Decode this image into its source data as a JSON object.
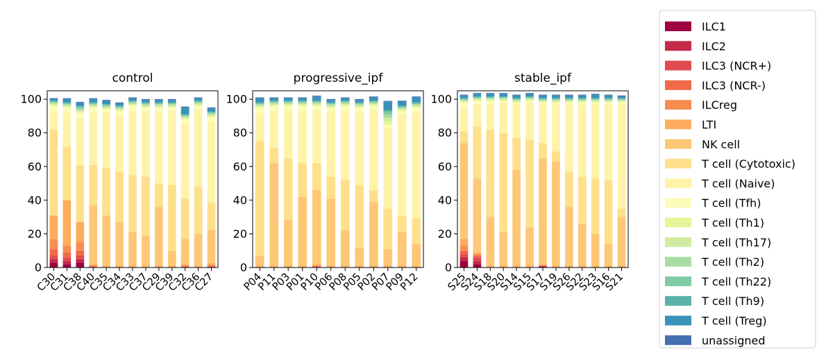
{
  "legend_entries": [
    {
      "name": "ILC1",
      "color": "#9e0142"
    },
    {
      "name": "ILC2",
      "color": "#c42a4a"
    },
    {
      "name": "ILC3 (NCR+)",
      "color": "#e04b4f"
    },
    {
      "name": "ILC3 (NCR-)",
      "color": "#f26a4a"
    },
    {
      "name": "ILCreg",
      "color": "#f88d52"
    },
    {
      "name": "LTI",
      "color": "#fdad5d"
    },
    {
      "name": "NK cell",
      "color": "#fec776"
    },
    {
      "name": "T cell (Cytotoxic)",
      "color": "#fee08b"
    },
    {
      "name": "T cell (Naive)",
      "color": "#fff3a9"
    },
    {
      "name": "T cell (Tfh)",
      "color": "#fbfdb8"
    },
    {
      "name": "T cell (Th1)",
      "color": "#e6f598"
    },
    {
      "name": "T cell (Th17)",
      "color": "#cfeca0"
    },
    {
      "name": "T cell (Th2)",
      "color": "#a9dca4"
    },
    {
      "name": "T cell (Th22)",
      "color": "#80cba4"
    },
    {
      "name": "T cell (Th9)",
      "color": "#5cb1aa"
    },
    {
      "name": "T cell (Treg)",
      "color": "#3a92b8"
    },
    {
      "name": "unassigned",
      "color": "#4470b1"
    }
  ],
  "chart_data": [
    {
      "type": "bar",
      "stacked": true,
      "title": "control",
      "ylim": [
        0,
        105
      ],
      "yticks": [
        0,
        20,
        40,
        60,
        80,
        100
      ],
      "categories": [
        "C30",
        "C31",
        "C38",
        "C40",
        "C35",
        "C34",
        "C33",
        "C37",
        "C29",
        "C39",
        "C32",
        "C36",
        "C27"
      ],
      "series": [
        {
          "name": "ILC1",
          "values": [
            3,
            2,
            3,
            0,
            0,
            0,
            0,
            0,
            0,
            0,
            0,
            0,
            0
          ]
        },
        {
          "name": "ILC2",
          "values": [
            2,
            2,
            2,
            0,
            0,
            0,
            0,
            0,
            0,
            0,
            0,
            0,
            0
          ]
        },
        {
          "name": "ILC3 (NCR+)",
          "values": [
            2,
            2,
            2,
            0.5,
            0,
            0,
            0,
            0,
            0,
            0,
            0.5,
            0,
            0.5
          ]
        },
        {
          "name": "ILC3 (NCR-)",
          "values": [
            4,
            3,
            3,
            0.5,
            0,
            0,
            0,
            0,
            0,
            0,
            0.5,
            0,
            0.5
          ]
        },
        {
          "name": "ILCreg",
          "values": [
            6,
            4,
            5,
            0,
            0,
            0,
            0,
            0,
            0,
            0,
            0,
            0,
            0.5
          ]
        },
        {
          "name": "LTI",
          "values": [
            14,
            27,
            12,
            1,
            1,
            1,
            1,
            1,
            1,
            1,
            1,
            1,
            1
          ]
        },
        {
          "name": "NK cell",
          "values": [
            0,
            0,
            0,
            35,
            30,
            26,
            20,
            18,
            35,
            9,
            15,
            19,
            20
          ]
        },
        {
          "name": "T cell (Cytotoxic)",
          "values": [
            51,
            32,
            34,
            24,
            28,
            30,
            34,
            35,
            14,
            39,
            24,
            28,
            16
          ]
        },
        {
          "name": "T cell (Naive)",
          "values": [
            11,
            20,
            28,
            31,
            33,
            33,
            38,
            39,
            42,
            44,
            44,
            46,
            48
          ]
        },
        {
          "name": "T cell (Tfh)",
          "values": [
            3,
            3,
            3,
            3,
            2,
            3,
            3,
            2,
            3,
            2,
            3,
            2,
            3
          ]
        },
        {
          "name": "T cell (Th1)",
          "values": [
            0.7,
            0.7,
            0.7,
            0.7,
            0.7,
            0.7,
            0.7,
            0.7,
            0.7,
            0.7,
            0.7,
            0.7,
            0.7
          ]
        },
        {
          "name": "T cell (Th17)",
          "values": [
            0.7,
            0.7,
            0.7,
            0.7,
            0.7,
            0.7,
            0.7,
            0.7,
            0.7,
            0.7,
            0.7,
            0.7,
            0.7
          ]
        },
        {
          "name": "T cell (Th2)",
          "values": [
            0.7,
            0.7,
            1,
            0.7,
            0.7,
            0.7,
            0.7,
            0.7,
            0.7,
            0.7,
            0.7,
            0.7,
            0.7
          ]
        },
        {
          "name": "T cell (Th22)",
          "values": [
            0.5,
            0.5,
            1,
            0.5,
            0.5,
            0.5,
            0.5,
            0.5,
            0.5,
            0.5,
            0.5,
            0.5,
            0.5
          ]
        },
        {
          "name": "T cell (Th9)",
          "values": [
            0.5,
            0.5,
            0.5,
            0.5,
            0.5,
            0.5,
            0.5,
            0.5,
            0.5,
            0.5,
            0.5,
            0.5,
            0.5
          ]
        },
        {
          "name": "T cell (Treg)",
          "values": [
            1,
            2,
            2,
            2,
            2,
            1.5,
            1.5,
            1.5,
            1.5,
            1.5,
            4,
            1.5,
            2
          ]
        },
        {
          "name": "unassigned",
          "values": [
            0.5,
            0.5,
            0.5,
            0.5,
            0.5,
            0.5,
            0.5,
            0.5,
            0.5,
            0.5,
            0.5,
            0.5,
            0.5
          ]
        }
      ]
    },
    {
      "type": "bar",
      "stacked": true,
      "title": "progressive_ipf",
      "ylim": [
        0,
        105
      ],
      "yticks": [
        0,
        20,
        40,
        60,
        80,
        100
      ],
      "categories": [
        "P04",
        "P11",
        "P03",
        "P01",
        "P10",
        "P06",
        "P08",
        "P05",
        "P02",
        "P07",
        "P09",
        "P12"
      ],
      "series": [
        {
          "name": "ILC1",
          "values": [
            0,
            0,
            0,
            0,
            0,
            0,
            0,
            0,
            0,
            0,
            0,
            0
          ]
        },
        {
          "name": "ILC2",
          "values": [
            0,
            0,
            0,
            0,
            0,
            0,
            0,
            0,
            0,
            0,
            0,
            0
          ]
        },
        {
          "name": "ILC3 (NCR+)",
          "values": [
            0,
            0,
            0,
            0,
            0.5,
            0,
            0,
            0,
            0,
            0,
            0,
            0
          ]
        },
        {
          "name": "ILC3 (NCR-)",
          "values": [
            0,
            0,
            0,
            0,
            0.5,
            0,
            0,
            0,
            0,
            0,
            0,
            0
          ]
        },
        {
          "name": "ILCreg",
          "values": [
            0,
            0,
            0,
            0,
            0,
            0,
            0,
            0,
            0,
            0,
            0,
            0
          ]
        },
        {
          "name": "LTI",
          "values": [
            1,
            1,
            1,
            1,
            1,
            1,
            1,
            1,
            1,
            1,
            1,
            1
          ]
        },
        {
          "name": "NK cell",
          "values": [
            6,
            61,
            27,
            41,
            44,
            40,
            21,
            11,
            38,
            10,
            20,
            13
          ]
        },
        {
          "name": "T cell (Cytotoxic)",
          "values": [
            68,
            9,
            37,
            20,
            16,
            13,
            30,
            37,
            7,
            24,
            10,
            15
          ]
        },
        {
          "name": "T cell (Naive)",
          "values": [
            17,
            22,
            29,
            31,
            32,
            39,
            41,
            43,
            48,
            48,
            60,
            63
          ]
        },
        {
          "name": "T cell (Tfh)",
          "values": [
            3,
            3,
            2,
            3,
            2,
            2,
            3,
            3,
            2,
            2,
            2,
            3
          ]
        },
        {
          "name": "T cell (Th1)",
          "values": [
            0.7,
            0.7,
            0.7,
            0.7,
            0.7,
            0.7,
            0.7,
            0.7,
            0.7,
            2,
            0.7,
            0.7
          ]
        },
        {
          "name": "T cell (Th17)",
          "values": [
            0.7,
            0.7,
            0.7,
            0.7,
            0.7,
            0.7,
            0.7,
            0.7,
            0.7,
            2,
            0.7,
            0.7
          ]
        },
        {
          "name": "T cell (Th2)",
          "values": [
            0.7,
            0.7,
            0.7,
            0.7,
            0.7,
            0.7,
            0.7,
            0.7,
            0.7,
            2,
            0.7,
            0.7
          ]
        },
        {
          "name": "T cell (Th22)",
          "values": [
            0.5,
            0.5,
            0.5,
            0.5,
            0.5,
            0.5,
            0.5,
            0.5,
            0.5,
            1.5,
            0.5,
            0.5
          ]
        },
        {
          "name": "T cell (Th9)",
          "values": [
            0.5,
            0.5,
            0.5,
            0.5,
            0.5,
            0.5,
            0.5,
            0.5,
            0.5,
            1,
            0.5,
            0.5
          ]
        },
        {
          "name": "T cell (Treg)",
          "values": [
            2.5,
            1.5,
            1.5,
            1.5,
            2.5,
            1.5,
            1.5,
            1.5,
            2,
            5,
            2.5,
            3
          ]
        },
        {
          "name": "unassigned",
          "values": [
            0.5,
            0.5,
            0.5,
            0.5,
            0.5,
            0.5,
            0.5,
            0.5,
            0.5,
            0.5,
            0.5,
            0.5
          ]
        }
      ]
    },
    {
      "type": "bar",
      "stacked": true,
      "title": "stable_ipf",
      "ylim": [
        0,
        105
      ],
      "yticks": [
        0,
        20,
        40,
        60,
        80,
        100
      ],
      "categories": [
        "S25",
        "S24",
        "S18",
        "S20",
        "S14",
        "S15",
        "S17",
        "S19",
        "S26",
        "S22",
        "S23",
        "S16",
        "S21"
      ],
      "series": [
        {
          "name": "ILC1",
          "values": [
            4,
            2,
            0,
            0,
            0,
            0,
            0.5,
            0,
            0,
            0,
            0,
            0,
            0
          ]
        },
        {
          "name": "ILC2",
          "values": [
            2,
            2,
            0,
            0,
            0,
            0,
            0.5,
            0,
            0,
            0,
            0,
            0,
            0
          ]
        },
        {
          "name": "ILC3 (NCR+)",
          "values": [
            2,
            2,
            0,
            0,
            0,
            0,
            0,
            0,
            0,
            0,
            0,
            0,
            0
          ]
        },
        {
          "name": "ILC3 (NCR-)",
          "values": [
            2,
            1,
            0,
            0,
            0,
            0,
            0,
            0,
            0,
            0,
            0,
            0,
            0
          ]
        },
        {
          "name": "ILCreg",
          "values": [
            3,
            1,
            0,
            0,
            0,
            0,
            0,
            0,
            0,
            0,
            0,
            0,
            0
          ]
        },
        {
          "name": "LTI",
          "values": [
            4,
            1,
            1,
            1,
            1,
            1,
            1,
            1,
            1,
            1,
            1,
            1,
            1
          ]
        },
        {
          "name": "NK cell",
          "values": [
            57,
            44,
            29,
            20,
            57,
            23,
            63,
            62,
            35,
            25,
            19,
            13,
            29
          ]
        },
        {
          "name": "T cell (Cytotoxic)",
          "values": [
            7,
            31,
            52,
            59,
            19,
            52,
            9,
            6,
            21,
            28,
            33,
            38,
            5
          ]
        },
        {
          "name": "T cell (Naive)",
          "values": [
            14,
            13,
            15,
            18,
            20,
            22,
            23,
            28,
            40,
            43,
            44,
            45,
            62
          ]
        },
        {
          "name": "T cell (Tfh)",
          "values": [
            3,
            2,
            2,
            1,
            1,
            1,
            1,
            1,
            1,
            1,
            1,
            1,
            1
          ]
        },
        {
          "name": "T cell (Th1)",
          "values": [
            0.7,
            0.7,
            0.7,
            0.7,
            0.7,
            0.7,
            0.7,
            0.7,
            0.7,
            0.7,
            0.7,
            0.7,
            0.7
          ]
        },
        {
          "name": "T cell (Th17)",
          "values": [
            0.5,
            0.5,
            0.5,
            0.5,
            0.5,
            0.5,
            0.5,
            0.5,
            0.5,
            0.5,
            0.5,
            0.5,
            0.5
          ]
        },
        {
          "name": "T cell (Th2)",
          "values": [
            0.5,
            0.5,
            0.5,
            0.5,
            0.5,
            0.5,
            0.5,
            0.5,
            0.5,
            0.5,
            0.5,
            0.5,
            0.5
          ]
        },
        {
          "name": "T cell (Th22)",
          "values": [
            0.5,
            0.5,
            0.5,
            0.5,
            0.5,
            0.5,
            0.5,
            0.5,
            0.5,
            0.5,
            0.5,
            0.5,
            0.5
          ]
        },
        {
          "name": "T cell (Th9)",
          "values": [
            0.5,
            0.5,
            0.5,
            0.5,
            0.5,
            0.5,
            0.5,
            0.5,
            0.5,
            0.5,
            0.5,
            0.5,
            0.5
          ]
        },
        {
          "name": "T cell (Treg)",
          "values": [
            1.5,
            1.5,
            1.5,
            1.5,
            1.5,
            1.5,
            1.5,
            1.5,
            1.5,
            1.5,
            2,
            1.5,
            1
          ]
        },
        {
          "name": "unassigned",
          "values": [
            0.5,
            0.5,
            0.5,
            0.5,
            0.5,
            0.5,
            0.5,
            0.5,
            0.5,
            0.5,
            0.5,
            0.5,
            0.5
          ]
        }
      ]
    }
  ]
}
